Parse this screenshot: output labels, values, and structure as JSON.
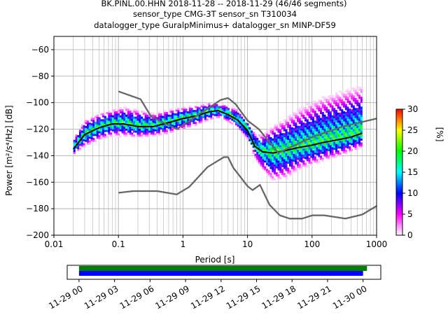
{
  "chart_data": [
    {
      "type": "heatmap",
      "title_lines": [
        "BK.PINL.00.HHN   2018-11-28 -- 2018-11-29  (46/46 segments)",
        "sensor_type CMG-3T sensor_sn T310034",
        "datalogger_type GuralpMinimus+ datalogger_sn MINP-DF59"
      ],
      "xlabel": "Period [s]",
      "ylabel": "Power [m²/s⁴/Hz] [dB]",
      "xscale": "log",
      "xlim": [
        0.01,
        1000
      ],
      "ylim": [
        -200,
        -50
      ],
      "xticks": [
        0.01,
        0.1,
        1,
        10,
        100,
        1000
      ],
      "xtick_labels": [
        "0.01",
        "0.1",
        "1",
        "10",
        "100",
        "1000"
      ],
      "yticks": [
        -200,
        -180,
        -160,
        -140,
        -120,
        -100,
        -80,
        -60
      ],
      "ytick_labels": [
        "−200",
        "−180",
        "−160",
        "−140",
        "−120",
        "−100",
        "−80",
        "−60"
      ],
      "grid": true,
      "colorbar": {
        "label": "[%]",
        "range": [
          0,
          30
        ],
        "ticks": [
          0,
          5,
          10,
          15,
          20,
          25,
          30
        ],
        "tick_labels": [
          "0",
          "5",
          "10",
          "15",
          "20",
          "25",
          "30"
        ],
        "colors": [
          "#ffffff",
          "#ff00ff",
          "#0000ff",
          "#00ffff",
          "#00ff00",
          "#ffff00",
          "#ff0000"
        ]
      },
      "series": [
        {
          "role": "mean",
          "color": "#000000",
          "x": [
            0.02,
            0.03,
            0.05,
            0.08,
            0.12,
            0.2,
            0.35,
            0.6,
            1,
            1.6,
            2.5,
            3.5,
            5,
            7,
            10,
            13,
            17,
            25,
            40,
            60,
            100,
            150,
            250,
            400,
            600
          ],
          "y": [
            -135,
            -124,
            -119,
            -116,
            -116,
            -118,
            -118,
            -115,
            -112,
            -110,
            -107,
            -106,
            -109,
            -113,
            -121,
            -133,
            -137,
            -138,
            -136,
            -134,
            -132,
            -130,
            -128,
            -126,
            -123
          ]
        },
        {
          "role": "noise-model-high",
          "color": "#666666",
          "x": [
            0.1,
            0.22,
            0.32,
            0.8,
            3.8,
            5,
            6.5,
            10,
            15,
            30,
            100,
            300,
            1000
          ],
          "y": [
            -91.5,
            -97.4,
            -110.5,
            -120,
            -98,
            -96.5,
            -101,
            -113.5,
            -120,
            -138,
            -126,
            -118,
            -112
          ]
        },
        {
          "role": "noise-model-low",
          "color": "#666666",
          "x": [
            0.1,
            0.17,
            0.4,
            0.8,
            1.24,
            2.4,
            4.3,
            5,
            6,
            10,
            12,
            15.6,
            21.9,
            31.6,
            45,
            70,
            101,
            154,
            328,
            600,
            1000
          ],
          "y": [
            -168,
            -166.7,
            -166.7,
            -169.2,
            -163.7,
            -148.6,
            -141.1,
            -141.1,
            -149,
            -163,
            -166,
            -162,
            -177,
            -185,
            -187.5,
            -187.5,
            -185,
            -185,
            -187.5,
            -184.4,
            -178
          ]
        }
      ],
      "density_bands": [
        {
          "x": [
            0.02,
            0.03,
            0.05,
            0.08,
            0.12,
            0.2,
            0.35,
            0.6,
            1,
            1.6,
            2.5,
            3.5,
            5,
            7,
            10,
            13,
            17,
            25,
            40,
            60,
            100,
            150,
            250,
            400,
            600
          ],
          "center": [
            -135,
            -124,
            -119,
            -116,
            -116,
            -118,
            -118,
            -115,
            -112,
            -110,
            -107,
            -106,
            -109,
            -113,
            -121,
            -133,
            -137,
            -138,
            -136,
            -134,
            -132,
            -130,
            -128,
            -126,
            -123
          ],
          "upper": [
            -128,
            -114,
            -109,
            -106,
            -104,
            -106,
            -109,
            -106,
            -104,
            -103,
            -101,
            -101,
            -103,
            -106,
            -113,
            -124,
            -125,
            -118,
            -112,
            -106,
            -100,
            -96,
            -93,
            -90,
            -88
          ],
          "lower": [
            -140,
            -134,
            -129,
            -126,
            -126,
            -127,
            -126,
            -124,
            -121,
            -118,
            -114,
            -112,
            -115,
            -120,
            -128,
            -142,
            -152,
            -160,
            -158,
            -152,
            -148,
            -145,
            -142,
            -138,
            -135
          ]
        }
      ]
    },
    {
      "type": "timeline",
      "xlim": [
        "2018-11-28 23:00",
        "2018-11-30 01:30"
      ],
      "tick_labels": [
        "11-29 00",
        "11-29 03",
        "11-29 06",
        "11-29 09",
        "11-29 12",
        "11-29 15",
        "11-29 18",
        "11-29 21",
        "11-30 00"
      ],
      "bars": [
        {
          "role": "data-segments",
          "color": "#008000",
          "start": "2018-11-29 00:00",
          "end": "2018-11-30 00:20"
        },
        {
          "role": "psd-segments",
          "color": "#0000ff",
          "start": "2018-11-29 00:00",
          "end": "2018-11-30 00:00"
        }
      ]
    }
  ]
}
